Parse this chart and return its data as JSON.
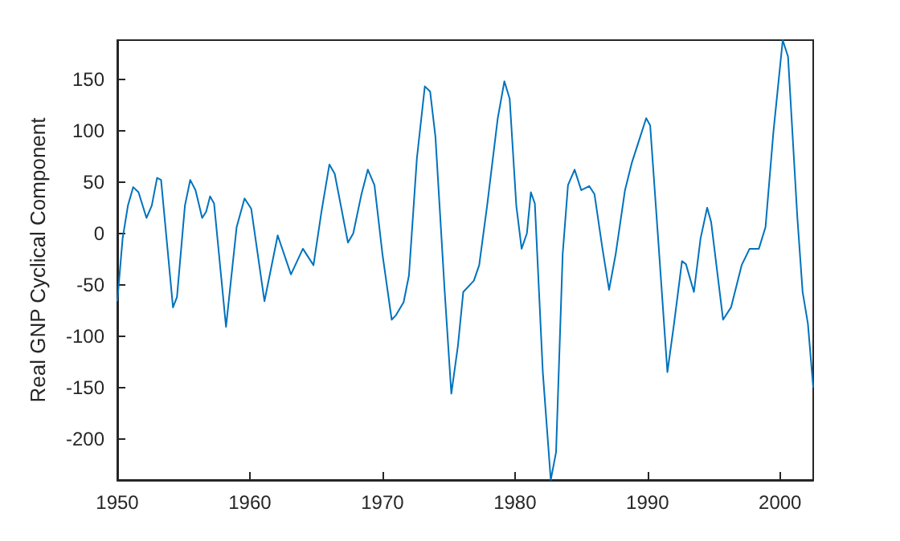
{
  "chart_data": {
    "type": "line",
    "ylabel": "Real GNP Cyclical Component",
    "color": "#0072bd",
    "marker": "none",
    "line_style": "solid",
    "xlim": [
      1950,
      2002.5
    ],
    "xticks": [
      1950,
      1960,
      1970,
      1980,
      1990,
      2000
    ],
    "ylim": [
      -240,
      188
    ],
    "yticks": [
      -200,
      -150,
      -100,
      -50,
      0,
      50,
      100,
      150
    ],
    "x": [
      1950,
      1950.4,
      1950.8,
      1951.2,
      1951.6,
      1952.2,
      1952.6,
      1953.0,
      1953.3,
      1954.2,
      1954.5,
      1955.1,
      1955.5,
      1955.9,
      1956.4,
      1956.7,
      1957.0,
      1957.3,
      1958.2,
      1959.0,
      1959.6,
      1960.1,
      1961.1,
      1962.1,
      1963.1,
      1964.0,
      1964.8,
      1965.4,
      1966.0,
      1966.4,
      1967.4,
      1967.8,
      1968.4,
      1968.9,
      1969.4,
      1970.0,
      1970.7,
      1971.0,
      1971.6,
      1972.0,
      1972.6,
      1973.2,
      1973.6,
      1974.0,
      1974.7,
      1975.2,
      1975.7,
      1976.1,
      1976.9,
      1977.3,
      1977.9,
      1978.7,
      1979.2,
      1979.6,
      1980.1,
      1980.5,
      1980.9,
      1981.2,
      1981.5,
      1982.1,
      1982.7,
      1983.1,
      1983.6,
      1984.0,
      1984.5,
      1985.0,
      1985.6,
      1986.0,
      1986.6,
      1987.1,
      1987.6,
      1988.3,
      1988.8,
      1989.4,
      1989.9,
      1990.2,
      1990.8,
      1991.5,
      1992.0,
      1992.6,
      1992.9,
      1993.5,
      1994.0,
      1994.5,
      1994.8,
      1995.7,
      1996.3,
      1997.1,
      1997.7,
      1998.4,
      1998.9,
      1999.5,
      2000.2,
      2000.6,
      2001.3,
      2001.7,
      2002.1,
      2002.5
    ],
    "values": [
      -66,
      -5,
      27,
      45,
      40,
      15,
      27,
      54,
      52,
      -72,
      -62,
      27,
      52,
      42,
      15,
      21,
      36,
      29,
      -91,
      6,
      34,
      24,
      -66,
      -2,
      -40,
      -15,
      -31,
      21,
      67,
      58,
      -9,
      0,
      37,
      62,
      47,
      -20,
      -84,
      -80,
      -67,
      -41,
      73,
      143,
      138,
      94,
      -57,
      -156,
      -109,
      -57,
      -46,
      -31,
      27,
      112,
      148,
      131,
      27,
      -15,
      0,
      40,
      29,
      -135,
      -240,
      -213,
      -20,
      47,
      62,
      42,
      46,
      38,
      -15,
      -55,
      -20,
      42,
      68,
      92,
      112,
      105,
      -5,
      -135,
      -88,
      -27,
      -30,
      -57,
      -5,
      25,
      11,
      -84,
      -72,
      -31,
      -15,
      -15,
      6,
      99,
      188,
      172,
      16,
      -57,
      -88,
      -150
    ]
  }
}
